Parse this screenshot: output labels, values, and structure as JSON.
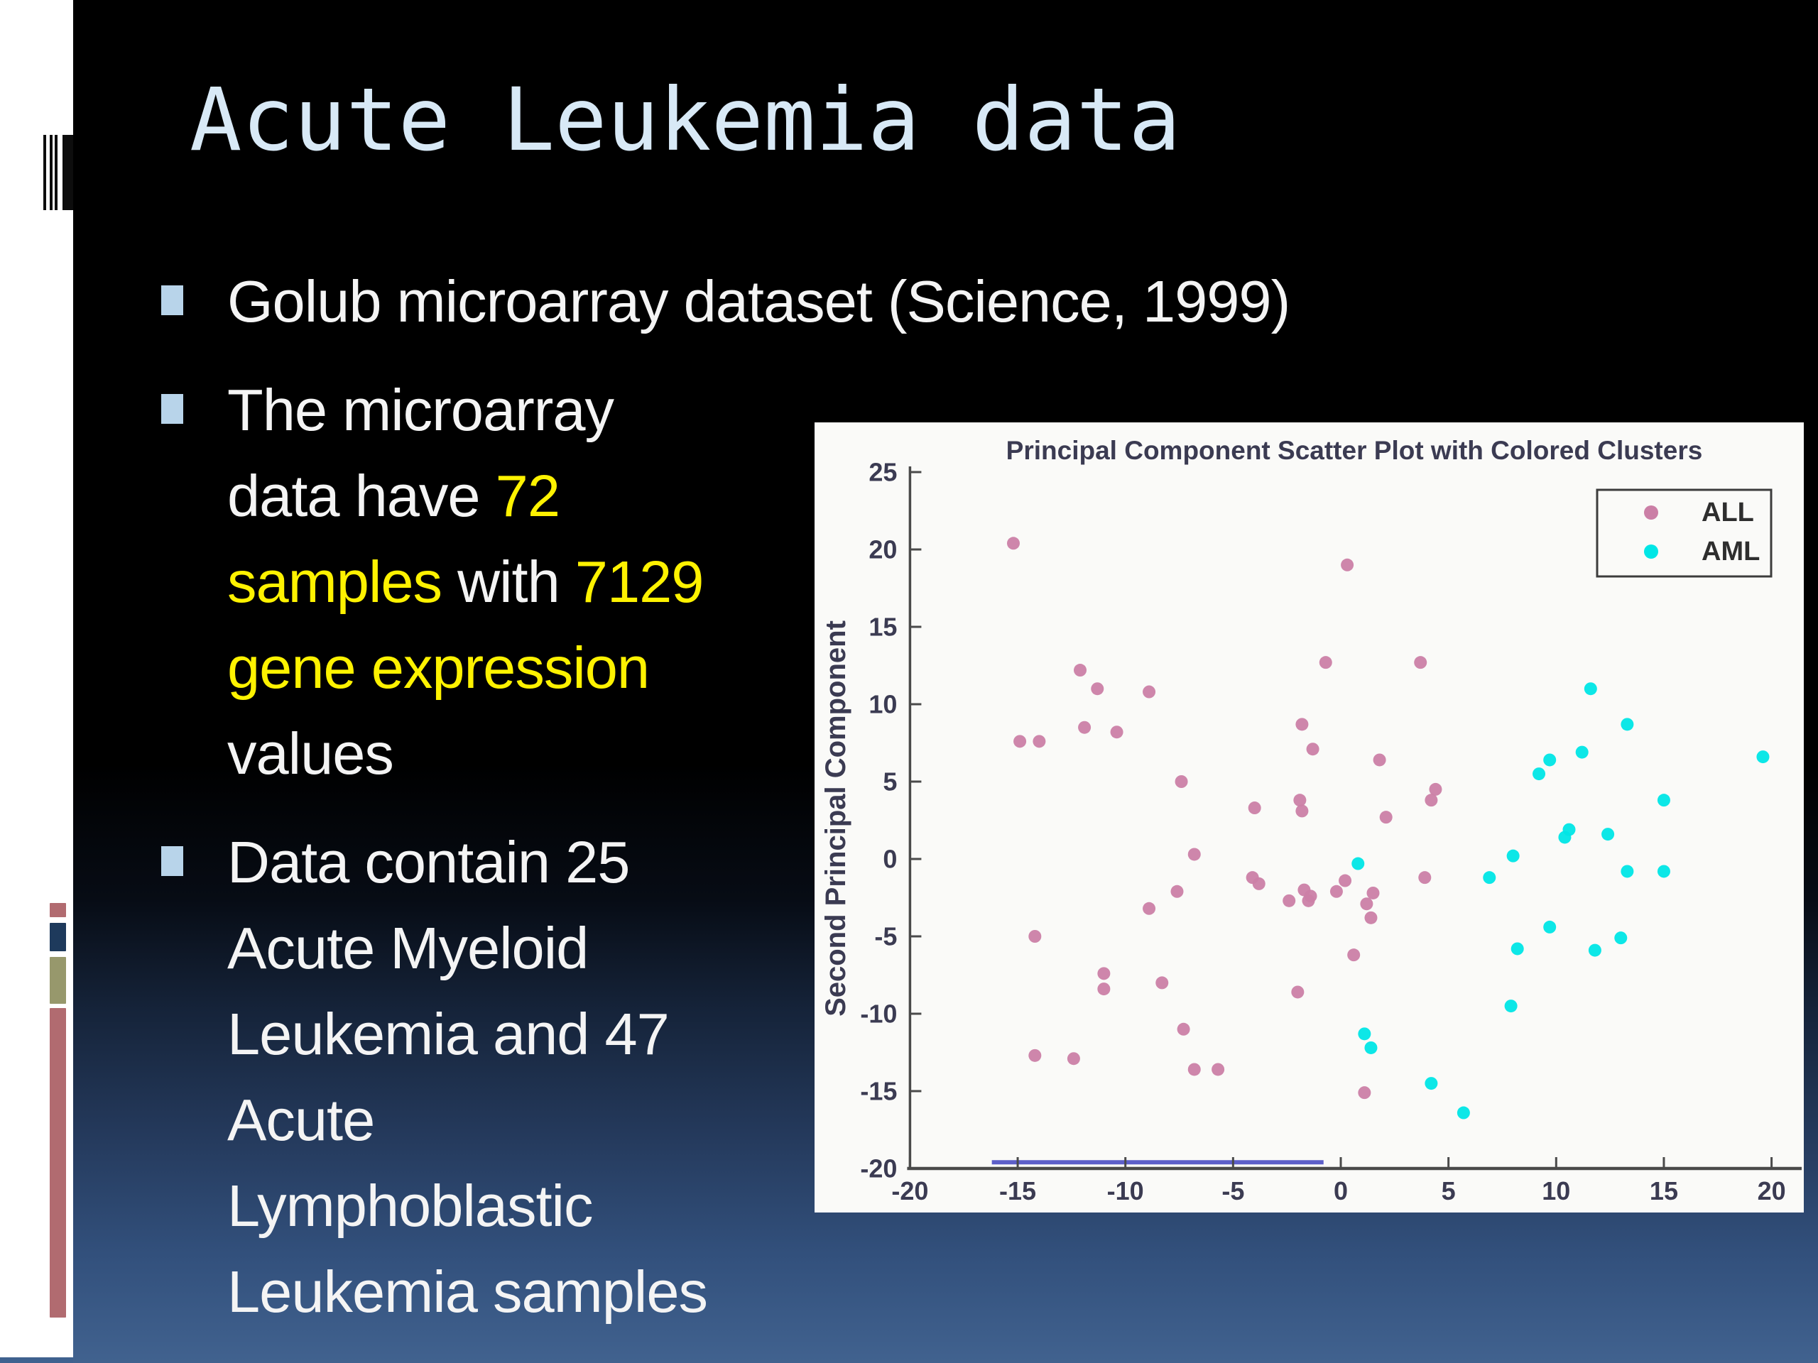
{
  "slide": {
    "title": "Acute Leukemia data",
    "title_color": "#d8e9f6",
    "text_colors": {
      "white": "#f4f4f4",
      "yellow": "#fef200"
    },
    "bullet_marker_color": "#b8d4ea",
    "bullets": [
      {
        "lines": [
          [
            {
              "t": "Golub microarray dataset (Science, 1999)",
              "c": "white"
            }
          ]
        ]
      },
      {
        "lines": [
          [
            {
              "t": "The microarray",
              "c": "white"
            }
          ],
          [
            {
              "t": "data have ",
              "c": "white"
            },
            {
              "t": "72",
              "c": "yellow"
            }
          ],
          [
            {
              "t": "samples",
              "c": "yellow"
            },
            {
              "t": " with ",
              "c": "white"
            },
            {
              "t": "7129",
              "c": "yellow"
            }
          ],
          [
            {
              "t": "gene expression",
              "c": "yellow"
            }
          ],
          [
            {
              "t": "values",
              "c": "white"
            }
          ]
        ]
      },
      {
        "lines": [
          [
            {
              "t": "Data contain 25",
              "c": "white"
            }
          ],
          [
            {
              "t": "Acute Myeloid",
              "c": "white"
            }
          ],
          [
            {
              "t": "Leukemia and 47",
              "c": "white"
            }
          ],
          [
            {
              "t": "Acute",
              "c": "white"
            }
          ],
          [
            {
              "t": "Lymphoblastic",
              "c": "white"
            }
          ],
          [
            {
              "t": "Leukemia samples",
              "c": "white"
            }
          ]
        ]
      }
    ]
  },
  "sidebar": {
    "chip_colors": [
      "#b16b70",
      "#1e3a5c",
      "#97986c",
      "#b16b70"
    ],
    "bottom_sliver_color": "#3f618f"
  },
  "chart_data": {
    "type": "scatter",
    "title": "Principal Component Scatter Plot with Colored Clusters",
    "xlabel": "",
    "ylabel": "Second Principal Component",
    "xlim": [
      -20,
      20
    ],
    "ylim": [
      -20,
      25
    ],
    "xticks": [
      "-20",
      "-15",
      "-10",
      "-5",
      "0",
      "5",
      "10",
      "15",
      "20"
    ],
    "yticks": [
      "25",
      "20",
      "15",
      "10",
      "5",
      "0",
      "-5",
      "-10",
      "-15",
      "-20"
    ],
    "grid": false,
    "panel_color": "#fafaf8",
    "axis_color": "#4a4a4a",
    "text_color": "#3b3b52",
    "legend": {
      "position": "top-right",
      "border_color": "#3c3c3c",
      "entries": [
        {
          "name": "ALL",
          "color": "#cb7fa6"
        },
        {
          "name": "AML",
          "color": "#00e6e6"
        }
      ]
    },
    "annotation_line": {
      "y": -19.6,
      "x1": -16.2,
      "x2": -0.8,
      "color": "#4d4fc4"
    },
    "series": [
      {
        "name": "ALL",
        "color": "#cb7fa6",
        "points": [
          [
            -15.2,
            20.4
          ],
          [
            0.3,
            19.0
          ],
          [
            -0.7,
            12.7
          ],
          [
            3.7,
            12.7
          ],
          [
            -12.1,
            12.2
          ],
          [
            -11.3,
            11.0
          ],
          [
            -8.9,
            10.8
          ],
          [
            -11.9,
            8.5
          ],
          [
            -10.4,
            8.2
          ],
          [
            -14.9,
            7.6
          ],
          [
            -14.0,
            7.6
          ],
          [
            -1.8,
            8.7
          ],
          [
            -1.3,
            7.1
          ],
          [
            1.8,
            6.4
          ],
          [
            -7.4,
            5.0
          ],
          [
            4.4,
            4.5
          ],
          [
            4.2,
            3.8
          ],
          [
            -1.9,
            3.8
          ],
          [
            -1.8,
            3.1
          ],
          [
            -4.0,
            3.3
          ],
          [
            2.1,
            2.7
          ],
          [
            -6.8,
            0.3
          ],
          [
            3.9,
            -1.2
          ],
          [
            -4.1,
            -1.2
          ],
          [
            -3.8,
            -1.6
          ],
          [
            -7.6,
            -2.1
          ],
          [
            -1.7,
            -2.0
          ],
          [
            -1.4,
            -2.4
          ],
          [
            -1.5,
            -2.7
          ],
          [
            -2.4,
            -2.7
          ],
          [
            0.2,
            -1.4
          ],
          [
            -0.2,
            -2.1
          ],
          [
            1.5,
            -2.2
          ],
          [
            1.2,
            -2.9
          ],
          [
            -8.9,
            -3.2
          ],
          [
            1.4,
            -3.8
          ],
          [
            -14.2,
            -5.0
          ],
          [
            0.6,
            -6.2
          ],
          [
            -11.0,
            -7.4
          ],
          [
            -11.0,
            -8.4
          ],
          [
            -8.3,
            -8.0
          ],
          [
            -2.0,
            -8.6
          ],
          [
            -7.3,
            -11.0
          ],
          [
            -14.2,
            -12.7
          ],
          [
            -12.4,
            -12.9
          ],
          [
            -6.8,
            -13.6
          ],
          [
            -5.7,
            -13.6
          ],
          [
            1.1,
            -15.1
          ]
        ]
      },
      {
        "name": "AML",
        "color": "#00e6e6",
        "points": [
          [
            11.6,
            11.0
          ],
          [
            13.3,
            8.7
          ],
          [
            9.7,
            6.4
          ],
          [
            11.2,
            6.9
          ],
          [
            19.6,
            6.6
          ],
          [
            9.2,
            5.5
          ],
          [
            15.0,
            3.8
          ],
          [
            10.4,
            1.4
          ],
          [
            10.6,
            1.9
          ],
          [
            12.4,
            1.6
          ],
          [
            8.0,
            0.2
          ],
          [
            0.8,
            -0.3
          ],
          [
            6.9,
            -1.2
          ],
          [
            13.3,
            -0.8
          ],
          [
            15.0,
            -0.8
          ],
          [
            9.7,
            -4.4
          ],
          [
            13.0,
            -5.1
          ],
          [
            8.2,
            -5.8
          ],
          [
            11.8,
            -5.9
          ],
          [
            7.9,
            -9.5
          ],
          [
            1.1,
            -11.3
          ],
          [
            1.4,
            -12.2
          ],
          [
            4.2,
            -14.5
          ],
          [
            5.7,
            -16.4
          ]
        ]
      }
    ]
  }
}
